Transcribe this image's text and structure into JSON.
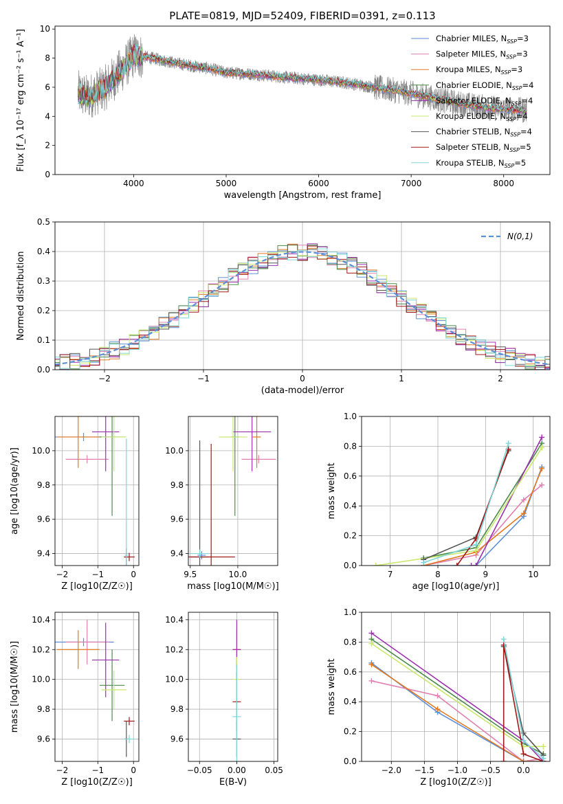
{
  "figure": {
    "title": "PLATE=0819, MJD=52409, FIBERID=0391, z=0.113"
  },
  "colors": {
    "Chabrier MILES": "#5b8fd8",
    "Salpeter MILES": "#e07fb0",
    "Kroupa MILES": "#e07820",
    "Chabrier ELODIE": "#4a8a4a",
    "Salpeter ELODIE": "#9b2fae",
    "Kroupa ELODIE": "#c8e86a",
    "Chabrier STELIB": "#555555",
    "Salpeter STELIB": "#a01818",
    "Kroupa STELIB": "#7fd6d8",
    "data": "#808080"
  },
  "chart_data": [
    {
      "id": "spectrum",
      "type": "line",
      "xlabel": "wavelength [Angstrom, rest frame]",
      "ylabel": "Flux [f_λ 10⁻¹⁷ erg cm⁻² s⁻¹ A⁻¹]",
      "xlim": [
        3150,
        8500
      ],
      "ylim": [
        0,
        10.2
      ],
      "xticks": [
        4000,
        5000,
        6000,
        7000,
        8000
      ],
      "yticks": [
        0,
        2,
        4,
        6,
        8,
        10
      ],
      "legend_position": "upper right",
      "series": [
        {
          "name": "Chabrier MILES, N_SSP=3"
        },
        {
          "name": "Salpeter MILES, N_SSP=3"
        },
        {
          "name": "Kroupa MILES, N_SSP=3"
        },
        {
          "name": "Chabrier ELODIE, N_SSP=4"
        },
        {
          "name": "Salpeter ELODIE, N_SSP=4"
        },
        {
          "name": "Kroupa ELODIE, N_SSP=4"
        },
        {
          "name": "Chabrier STELIB, N_SSP=4"
        },
        {
          "name": "Salpeter STELIB, N_SSP=5"
        },
        {
          "name": "Kroupa STELIB, N_SSP=5"
        }
      ],
      "continuum": {
        "x": [
          3400,
          3500,
          3700,
          3900,
          4000,
          4200,
          4500,
          4800,
          5000,
          5300,
          5600,
          6000,
          6300,
          6600,
          6900,
          7200,
          7500,
          7800,
          8000,
          8250
        ],
        "y": [
          5.6,
          5.3,
          6.0,
          7.4,
          8.2,
          8.0,
          7.6,
          7.3,
          7.0,
          6.9,
          6.7,
          6.5,
          6.3,
          6.0,
          5.7,
          5.3,
          4.9,
          4.6,
          4.5,
          4.4
        ]
      }
    },
    {
      "id": "residuals",
      "type": "histogram",
      "xlabel": "(data-model)/error",
      "ylabel": "Normed distribution",
      "xlim": [
        -2.5,
        2.5
      ],
      "ylim": [
        0,
        0.5
      ],
      "xticks": [
        -2,
        -1,
        0,
        1,
        2
      ],
      "yticks": [
        0.0,
        0.1,
        0.2,
        0.3,
        0.4,
        0.5
      ],
      "legend": "N(0,1)",
      "bin_width": 0.1,
      "grid": true
    },
    {
      "id": "age_vs_Z",
      "type": "errorbar",
      "xlabel": "Z [log10(Z/Z☉)]",
      "ylabel": "age [log10(age/yr)]",
      "xlim": [
        -2.2,
        0.15
      ],
      "ylim": [
        9.33,
        10.2
      ],
      "xticks": [
        -2,
        -1,
        0
      ],
      "yticks": [
        9.4,
        9.6,
        9.8,
        10.0
      ],
      "points": [
        {
          "model": "Chabrier MILES",
          "x": -1.4,
          "xerr": 0.85,
          "y": 10.08,
          "yerr": 0.0
        },
        {
          "model": "Salpeter MILES",
          "x": -1.3,
          "xerr": 0.6,
          "y": 9.95,
          "yerr": 0.0
        },
        {
          "model": "Kroupa MILES",
          "x": -1.55,
          "xerr": 0.6,
          "y": 10.08,
          "yerr": 0.18
        },
        {
          "model": "Chabrier ELODIE",
          "x": -0.6,
          "xerr": 0.35,
          "y": 10.08,
          "yerr": 0.46
        },
        {
          "model": "Salpeter ELODIE",
          "x": -0.78,
          "xerr": 0.38,
          "y": 10.11,
          "yerr": 0.23
        },
        {
          "model": "Kroupa ELODIE",
          "x": -0.55,
          "xerr": 0.35,
          "y": 10.08,
          "yerr": 0.2
        },
        {
          "model": "Chabrier STELIB",
          "x": -0.2,
          "xerr": 0.05,
          "y": 9.38,
          "yerr": 0.05
        },
        {
          "model": "Salpeter STELIB",
          "x": -0.12,
          "xerr": 0.15,
          "y": 9.38,
          "yerr": 0.0
        },
        {
          "model": "Kroupa STELIB",
          "x": -0.2,
          "xerr": 0.05,
          "y": 9.39,
          "yerr": 0.68
        }
      ]
    },
    {
      "id": "age_vs_mass",
      "type": "errorbar",
      "xlabel": "mass [log10(M/M☉)]",
      "xlim": [
        9.48,
        10.42
      ],
      "ylim": [
        9.33,
        10.2
      ],
      "xticks": [
        9.5,
        10.0
      ],
      "yticks": [
        9.4,
        9.6,
        9.8,
        10.0
      ],
      "points": [
        {
          "model": "Chabrier MILES",
          "x": 9.62,
          "xerr": 0.0,
          "y": 9.39,
          "yerr": 0.0
        },
        {
          "model": "Salpeter MILES",
          "x": 10.22,
          "xerr": 0.18,
          "y": 9.95,
          "yerr": 0.0
        },
        {
          "model": "Kroupa MILES",
          "x": 10.2,
          "xerr": 0.0,
          "y": 10.08,
          "yerr": 0.18
        },
        {
          "model": "Chabrier ELODIE",
          "x": 9.97,
          "xerr": 0.0,
          "y": 10.08,
          "yerr": 0.46
        },
        {
          "model": "Salpeter ELODIE",
          "x": 10.15,
          "xerr": 0.2,
          "y": 10.11,
          "yerr": 0.23
        },
        {
          "model": "Kroupa ELODIE",
          "x": 9.95,
          "xerr": 0.15,
          "y": 10.08,
          "yerr": 0.2
        },
        {
          "model": "Chabrier STELIB",
          "x": 9.6,
          "xerr": 0.1,
          "y": 9.38,
          "yerr": 0.68
        },
        {
          "model": "Salpeter STELIB",
          "x": 9.72,
          "xerr": 0.25,
          "y": 9.38,
          "yerr": 0.66
        },
        {
          "model": "Kroupa STELIB",
          "x": 9.6,
          "xerr": 0.1,
          "y": 9.4,
          "yerr": 0.0
        }
      ]
    },
    {
      "id": "weight_vs_age",
      "type": "line",
      "xlabel": "age [log10(age/yr)]",
      "ylabel": "mass weight",
      "xlim": [
        6.4,
        10.35
      ],
      "ylim": [
        0,
        1.0
      ],
      "xticks": [
        7,
        8,
        9,
        10
      ],
      "yticks": [
        0.0,
        0.2,
        0.4,
        0.6,
        0.8,
        1.0
      ],
      "series": [
        {
          "model": "Chabrier MILES",
          "x": [
            7.7,
            8.8,
            9.8,
            10.18
          ],
          "y": [
            0.0,
            0.0,
            0.33,
            0.66
          ]
        },
        {
          "model": "Salpeter MILES",
          "x": [
            7.7,
            8.8,
            9.8,
            10.18
          ],
          "y": [
            0.0,
            0.07,
            0.44,
            0.54
          ]
        },
        {
          "model": "Kroupa MILES",
          "x": [
            7.7,
            8.8,
            9.8,
            10.18
          ],
          "y": [
            0.0,
            0.09,
            0.35,
            0.65
          ]
        },
        {
          "model": "Chabrier ELODIE",
          "x": [
            7.7,
            8.8,
            10.18
          ],
          "y": [
            0.05,
            0.12,
            0.82
          ]
        },
        {
          "model": "Salpeter ELODIE",
          "x": [
            8.7,
            8.8,
            10.18
          ],
          "y": [
            0.0,
            0.0,
            0.86
          ]
        },
        {
          "model": "Kroupa ELODIE",
          "x": [
            6.7,
            8.8,
            10.18
          ],
          "y": [
            0.0,
            0.1,
            0.79
          ]
        },
        {
          "model": "Chabrier STELIB",
          "x": [
            7.7,
            8.8,
            9.48
          ],
          "y": [
            0.04,
            0.19,
            0.77
          ]
        },
        {
          "model": "Salpeter STELIB",
          "x": [
            8.4,
            8.8,
            9.48
          ],
          "y": [
            0.0,
            0.18,
            0.78
          ]
        },
        {
          "model": "Kroupa STELIB",
          "x": [
            7.7,
            8.8,
            9.48
          ],
          "y": [
            0.02,
            0.14,
            0.82
          ]
        }
      ]
    },
    {
      "id": "mass_vs_Z",
      "type": "errorbar",
      "xlabel": "Z [log10(Z/Z☉)]",
      "ylabel": "mass [log10(M/M☉)]",
      "xlim": [
        -2.2,
        0.15
      ],
      "ylim": [
        9.45,
        10.45
      ],
      "xticks": [
        -2,
        -1,
        0
      ],
      "yticks": [
        9.6,
        9.8,
        10.0,
        10.2,
        10.4
      ],
      "points": [
        {
          "model": "Chabrier MILES",
          "x": -1.4,
          "xerr": 0.85,
          "y": 10.25,
          "yerr": 0.0
        },
        {
          "model": "Salpeter MILES",
          "x": -1.3,
          "xerr": 0.6,
          "y": 10.25,
          "yerr": 0.15
        },
        {
          "model": "Kroupa MILES",
          "x": -1.55,
          "xerr": 0.6,
          "y": 10.2,
          "yerr": 0.13
        },
        {
          "model": "Chabrier ELODIE",
          "x": -0.6,
          "xerr": 0.35,
          "y": 9.96,
          "yerr": 0.24
        },
        {
          "model": "Salpeter ELODIE",
          "x": -0.78,
          "xerr": 0.38,
          "y": 10.13,
          "yerr": 0.25
        },
        {
          "model": "Kroupa ELODIE",
          "x": -0.55,
          "xerr": 0.35,
          "y": 9.93,
          "yerr": 0.13
        },
        {
          "model": "Chabrier STELIB",
          "x": -0.2,
          "xerr": 0.05,
          "y": 9.6,
          "yerr": 0.12
        },
        {
          "model": "Salpeter STELIB",
          "x": -0.12,
          "xerr": 0.15,
          "y": 9.72,
          "yerr": 0.0
        },
        {
          "model": "Kroupa STELIB",
          "x": -0.12,
          "xerr": 0.15,
          "y": 9.6,
          "yerr": 0.0
        }
      ]
    },
    {
      "id": "mass_vs_ebv",
      "type": "errorbar",
      "xlabel": "E(B-V)",
      "xlim": [
        -0.065,
        0.055
      ],
      "ylim": [
        9.45,
        10.45
      ],
      "xticks": [
        -0.05,
        0.0,
        0.05
      ],
      "yticks": [
        9.6,
        9.8,
        10.0,
        10.2,
        10.4
      ],
      "points": [
        {
          "model": "Kroupa MILES",
          "x": 0.0,
          "y": 10.2,
          "yerr": 0.13
        },
        {
          "model": "Salpeter ELODIE",
          "x": 0.0,
          "y": 10.2,
          "yerr": 0.2
        },
        {
          "model": "Kroupa ELODIE",
          "x": 0.0,
          "y": 10.0,
          "yerr": 0.15
        },
        {
          "model": "Chabrier STELIB",
          "x": 0.0,
          "y": 9.6,
          "yerr": 0.12
        },
        {
          "model": "Salpeter STELIB",
          "x": 0.0,
          "y": 9.85,
          "yerr": 0.2
        },
        {
          "model": "Kroupa STELIB",
          "x": 0.0,
          "y": 9.75,
          "yerr": 0.35
        }
      ]
    },
    {
      "id": "weight_vs_Z",
      "type": "line",
      "xlabel": "Z [log10(Z/Z☉)]",
      "ylabel": "mass weight",
      "xlim": [
        -2.45,
        0.4
      ],
      "ylim": [
        0,
        1.0
      ],
      "xticks": [
        -2.0,
        -1.5,
        -1.0,
        -0.5,
        0.0
      ],
      "yticks": [
        0.0,
        0.2,
        0.4,
        0.6,
        0.8,
        1.0
      ],
      "series": [
        {
          "model": "Chabrier MILES",
          "x": [
            -2.3,
            -1.3,
            0.0,
            0.3
          ],
          "y": [
            0.66,
            0.33,
            0.0,
            0.0
          ]
        },
        {
          "model": "Salpeter MILES",
          "x": [
            -2.3,
            -1.3,
            0.0,
            0.3
          ],
          "y": [
            0.54,
            0.44,
            0.0,
            0.02
          ]
        },
        {
          "model": "Kroupa MILES",
          "x": [
            -2.3,
            -1.3,
            0.0,
            0.3
          ],
          "y": [
            0.65,
            0.35,
            0.0,
            0.0
          ]
        },
        {
          "model": "Chabrier ELODIE",
          "x": [
            -2.3,
            0.0,
            0.3
          ],
          "y": [
            0.82,
            0.12,
            0.05
          ]
        },
        {
          "model": "Salpeter ELODIE",
          "x": [
            -2.3,
            0.0,
            0.3
          ],
          "y": [
            0.86,
            0.14,
            0.0
          ]
        },
        {
          "model": "Kroupa ELODIE",
          "x": [
            -2.3,
            0.0,
            0.3
          ],
          "y": [
            0.79,
            0.1,
            0.1
          ]
        },
        {
          "model": "Chabrier STELIB",
          "x": [
            -0.3,
            0.0,
            0.3
          ],
          "y": [
            0.77,
            0.19,
            0.04
          ]
        },
        {
          "model": "Salpeter STELIB",
          "x": [
            -0.3,
            -0.3,
            0.0,
            0.3
          ],
          "y": [
            0.0,
            0.78,
            0.05,
            0.0
          ]
        },
        {
          "model": "Kroupa STELIB",
          "x": [
            -0.3,
            0.0,
            0.3
          ],
          "y": [
            0.82,
            0.14,
            0.02
          ]
        }
      ]
    }
  ]
}
